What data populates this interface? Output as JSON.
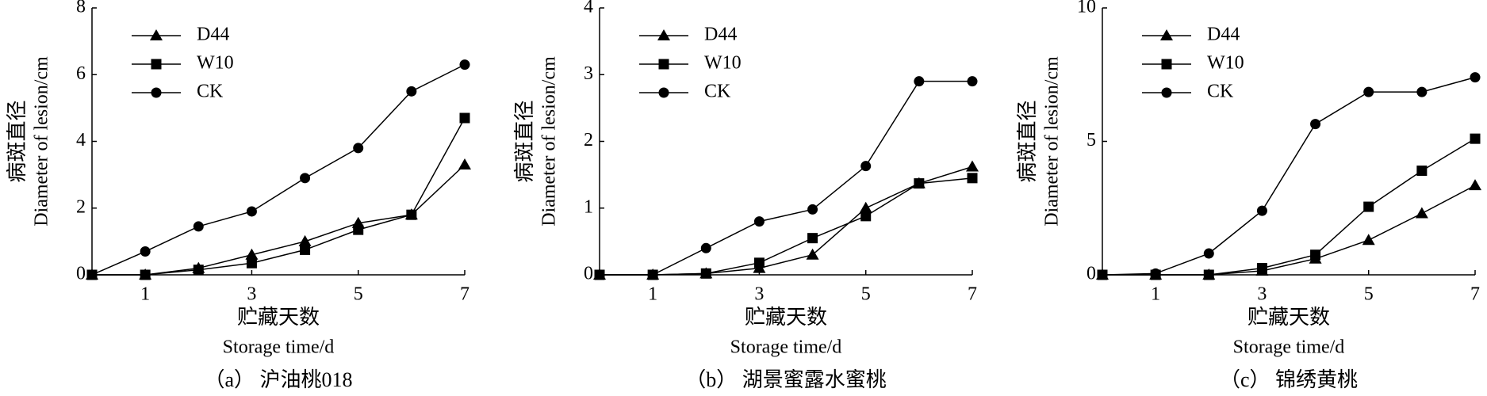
{
  "chart_data": [
    {
      "type": "line",
      "title": "（a） 沪油桃018",
      "y_label_cn": "病斑直径",
      "y_label": "Diameter of lesion/cm",
      "x_label_cn": "贮藏天数",
      "x_label": "Storage time/d",
      "x": [
        0,
        1,
        2,
        3,
        4,
        5,
        6,
        7
      ],
      "xlim": [
        0,
        7
      ],
      "xticks": [
        1,
        3,
        5,
        7
      ],
      "ylim": [
        0,
        8
      ],
      "yticks": [
        0,
        2,
        4,
        6,
        8
      ],
      "legend": "upper left",
      "series": [
        {
          "name": "D44",
          "color": "#000000",
          "marker": "triangle",
          "values": [
            0,
            0,
            0.2,
            0.6,
            1.0,
            1.55,
            1.8,
            3.3
          ]
        },
        {
          "name": "W10",
          "color": "#000000",
          "marker": "square",
          "values": [
            0,
            0,
            0.15,
            0.35,
            0.75,
            1.35,
            1.8,
            4.7
          ]
        },
        {
          "name": "CK",
          "color": "#000000",
          "marker": "circle",
          "values": [
            0,
            0.7,
            1.45,
            1.9,
            2.9,
            3.8,
            5.5,
            6.3
          ]
        }
      ]
    },
    {
      "type": "line",
      "title": "（b） 湖景蜜露水蜜桃",
      "y_label_cn": "病斑直径",
      "y_label": "Diameter of lesion/cm",
      "x_label_cn": "贮藏天数",
      "x_label": "Storage time/d",
      "x": [
        0,
        1,
        2,
        3,
        4,
        5,
        6,
        7
      ],
      "xlim": [
        0,
        7
      ],
      "xticks": [
        1,
        3,
        5,
        7
      ],
      "ylim": [
        0,
        4
      ],
      "yticks": [
        0,
        1,
        2,
        3,
        4
      ],
      "legend": "upper left",
      "series": [
        {
          "name": "D44",
          "color": "#000000",
          "marker": "triangle",
          "values": [
            0,
            0,
            0.02,
            0.1,
            0.3,
            1.0,
            1.37,
            1.62
          ]
        },
        {
          "name": "W10",
          "color": "#000000",
          "marker": "square",
          "values": [
            0,
            0,
            0.02,
            0.18,
            0.55,
            0.88,
            1.37,
            1.45
          ]
        },
        {
          "name": "CK",
          "color": "#000000",
          "marker": "circle",
          "values": [
            0,
            0,
            0.4,
            0.8,
            0.98,
            1.63,
            2.9,
            2.9
          ]
        }
      ]
    },
    {
      "type": "line",
      "title": "（c） 锦绣黄桃",
      "y_label_cn": "病斑直径",
      "y_label": "Diameter of lesion/cm",
      "x_label_cn": "贮藏天数",
      "x_label": "Storage time/d",
      "x": [
        0,
        1,
        2,
        3,
        4,
        5,
        6,
        7
      ],
      "xlim": [
        0,
        7
      ],
      "xticks": [
        1,
        3,
        5,
        7
      ],
      "ylim": [
        0,
        10
      ],
      "yticks": [
        0,
        5,
        10
      ],
      "legend": "upper left",
      "series": [
        {
          "name": "D44",
          "color": "#000000",
          "marker": "triangle",
          "values": [
            0,
            0,
            0,
            0.15,
            0.6,
            1.3,
            2.3,
            3.35
          ]
        },
        {
          "name": "W10",
          "color": "#000000",
          "marker": "square",
          "values": [
            0,
            0,
            0,
            0.25,
            0.75,
            2.55,
            3.9,
            5.1
          ]
        },
        {
          "name": "CK",
          "color": "#000000",
          "marker": "circle",
          "values": [
            0,
            0.05,
            0.8,
            2.4,
            5.65,
            6.85,
            6.85,
            7.4
          ]
        }
      ]
    }
  ]
}
